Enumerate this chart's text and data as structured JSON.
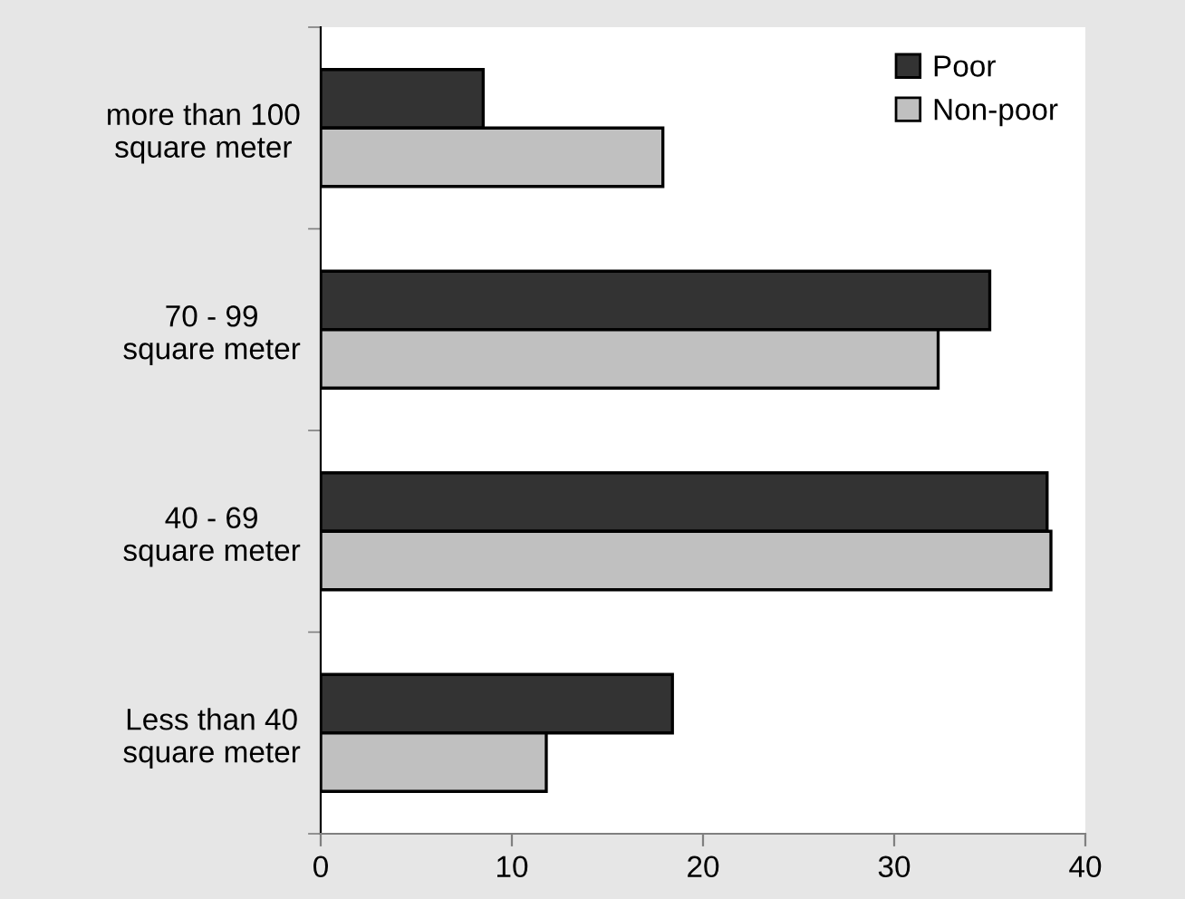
{
  "chart_data": {
    "type": "bar",
    "orientation": "horizontal",
    "categories": [
      "more than 100\nsquare meter",
      "70 - 99\nsquare meter",
      "40 - 69\nsquare meter",
      "Less than 40\nsquare meter"
    ],
    "series": [
      {
        "name": "Poor",
        "color": "#333333",
        "values": [
          8.5,
          35,
          38,
          18.4
        ]
      },
      {
        "name": "Non-poor",
        "color": "#c0c0c0",
        "values": [
          17.9,
          32.3,
          38.2,
          11.8
        ]
      }
    ],
    "xlim": [
      0,
      40
    ],
    "xticks": [
      0,
      10,
      20,
      30,
      40
    ],
    "grid": false,
    "legend": "top right"
  }
}
